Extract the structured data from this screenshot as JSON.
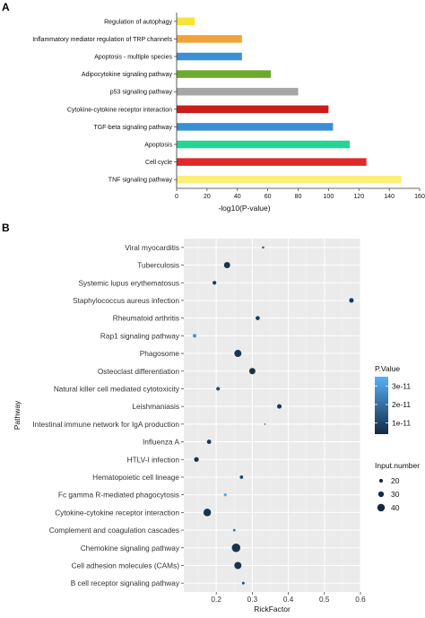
{
  "chart_data": [
    {
      "type": "bar",
      "orientation": "horizontal",
      "panel_label": "A",
      "categories": [
        "Regulation of autophagy",
        "Inflammatory mediator regulation of TRP channels",
        "Apoptosis - multiple species",
        "Adipocytokine signaling pathway",
        "p53 signaling pathway",
        "Cytokine-cytokine receptor interaction",
        "TGF-beta signaling pathway",
        "Apoptosis",
        "Cell cycle",
        "TNF signaling pathway"
      ],
      "values": [
        12,
        43,
        43,
        62,
        80,
        100,
        103,
        114,
        125,
        148
      ],
      "colors": [
        "#f5e53a",
        "#f3a23a",
        "#3b8fd4",
        "#6caa2c",
        "#a6a6a6",
        "#cc1c1c",
        "#3a8fd6",
        "#26d494",
        "#de2a2a",
        "#fbef78"
      ],
      "xlabel": "-log10(P-value)",
      "xlim": [
        0,
        160
      ],
      "xticks": [
        "0",
        "20",
        "40",
        "60",
        "80",
        "100",
        "120",
        "140",
        "160"
      ],
      "grid": false
    },
    {
      "type": "scatter",
      "panel_label": "B",
      "categories": [
        "Viral myocarditis",
        "Tuberculosis",
        "Systemic lupus erythematosus",
        "Staphylococcus aureus infection",
        "Rheumatoid arthritis",
        "Rap1 signaling pathway",
        "Phagosome",
        "Osteoclast differentiation",
        "Natural killer cell mediated cytotoxicity",
        "Leishmaniasis",
        "Intestinal immune network for IgA production",
        "Influenza A",
        "HTLV-I infection",
        "Hematopoietic cell lineage",
        "Fc gamma R-mediated phagocytosis",
        "Cytokine-cytokine receptor interaction",
        "Complement and coagulation cascades",
        "Chemokine signaling pathway",
        "Cell adhesion molecules (CAMs)",
        "B cell receptor signaling pathway"
      ],
      "points": [
        {
          "x": 0.33,
          "p": 1.5e-11,
          "n": 12
        },
        {
          "x": 0.23,
          "p": 6e-12,
          "n": 33
        },
        {
          "x": 0.195,
          "p": 8e-12,
          "n": 20
        },
        {
          "x": 0.575,
          "p": 7e-12,
          "n": 24
        },
        {
          "x": 0.315,
          "p": 8e-12,
          "n": 22
        },
        {
          "x": 0.14,
          "p": 2.9e-11,
          "n": 20
        },
        {
          "x": 0.26,
          "p": 7e-12,
          "n": 38
        },
        {
          "x": 0.3,
          "p": 6e-12,
          "n": 33
        },
        {
          "x": 0.205,
          "p": 1.2e-11,
          "n": 20
        },
        {
          "x": 0.375,
          "p": 7e-12,
          "n": 24
        },
        {
          "x": 0.335,
          "p": 1.8e-11,
          "n": 8
        },
        {
          "x": 0.18,
          "p": 7e-12,
          "n": 23
        },
        {
          "x": 0.145,
          "p": 6e-12,
          "n": 25
        },
        {
          "x": 0.27,
          "p": 1e-11,
          "n": 18
        },
        {
          "x": 0.225,
          "p": 3.3e-11,
          "n": 16
        },
        {
          "x": 0.175,
          "p": 6e-12,
          "n": 40
        },
        {
          "x": 0.25,
          "p": 2.1e-11,
          "n": 14
        },
        {
          "x": 0.255,
          "p": 6e-12,
          "n": 45
        },
        {
          "x": 0.26,
          "p": 6e-12,
          "n": 38
        },
        {
          "x": 0.275,
          "p": 1.2e-11,
          "n": 14
        }
      ],
      "xlabel": "RickFactor",
      "ylabel": "Pathway",
      "xlim": [
        0.11,
        0.6
      ],
      "xticks": [
        0.2,
        0.3,
        0.4,
        0.5,
        0.6
      ],
      "xtick_labels": [
        "0.2",
        "0.3",
        "0.4",
        "0.5",
        "0.6"
      ],
      "color_scale": {
        "title": "P.Value",
        "low": "#132b43",
        "high": "#56b1f7",
        "min": 4e-12,
        "max": 3.5e-11,
        "ticks": [
          3e-11,
          2e-11,
          1e-11
        ],
        "tick_labels": [
          "3e-11",
          "2e-11",
          "1e-11"
        ]
      },
      "size_legend": {
        "title": "Input.number",
        "values": [
          20,
          30,
          40
        ],
        "labels": [
          "20",
          "30",
          "40"
        ]
      },
      "grid": true,
      "background": "#ebebeb",
      "legend_position": "right"
    }
  ]
}
